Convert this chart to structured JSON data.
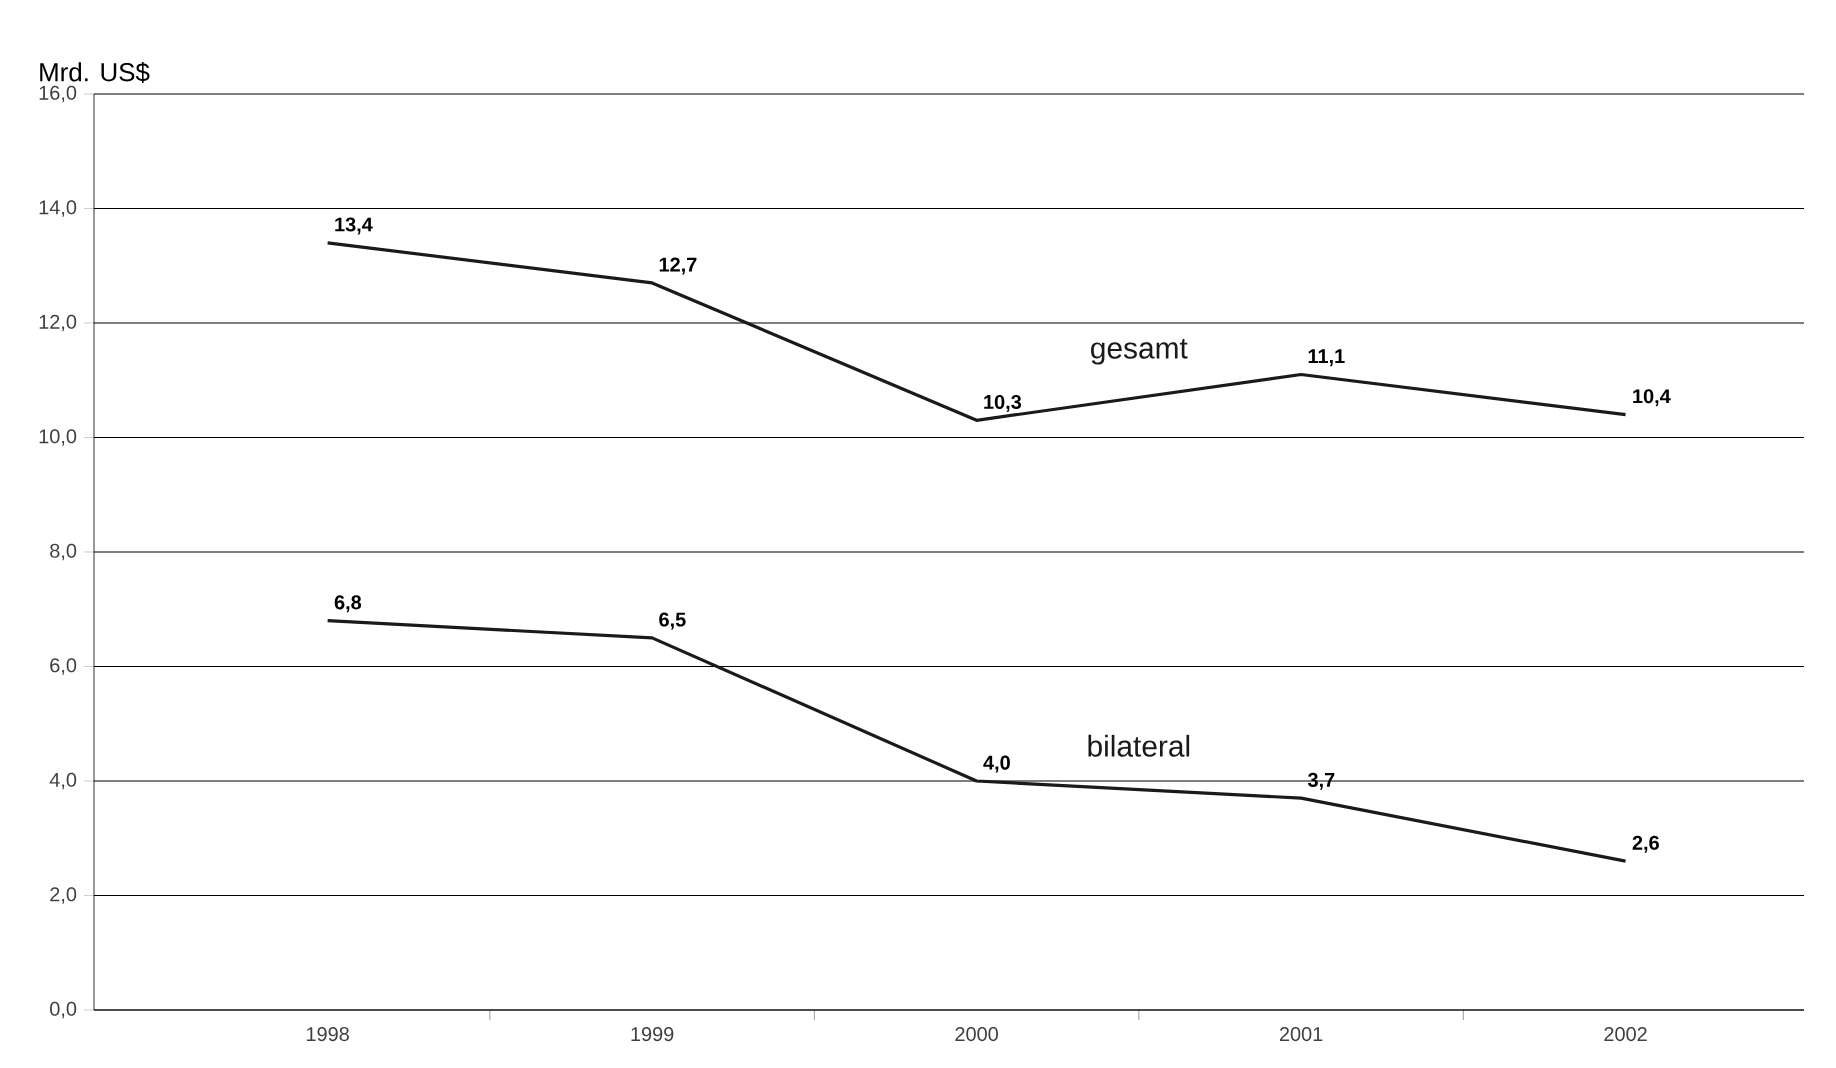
{
  "chart_data": {
    "type": "line",
    "ylabel": "Mrd. US$",
    "categories": [
      "1998",
      "1999",
      "2000",
      "2001",
      "2002"
    ],
    "series": [
      {
        "name": "gesamt",
        "color": "#1a1a1a",
        "values": [
          13.4,
          12.7,
          10.3,
          11.1,
          10.4
        ],
        "value_labels": [
          "13,4",
          "12,7",
          "10,3",
          "11,1",
          "10,4"
        ]
      },
      {
        "name": "bilateral",
        "color": "#1a1a1a",
        "values": [
          6.8,
          6.5,
          4.0,
          3.7,
          2.6
        ],
        "value_labels": [
          "6,8",
          "6,5",
          "4,0",
          "3,7",
          "2,6"
        ]
      }
    ],
    "ylim": [
      0,
      16
    ],
    "yticks": [
      {
        "value": 0,
        "label": "0,0"
      },
      {
        "value": 2,
        "label": "2,0"
      },
      {
        "value": 4,
        "label": "4,0"
      },
      {
        "value": 6,
        "label": "6,0"
      },
      {
        "value": 8,
        "label": "8,0"
      },
      {
        "value": 10,
        "label": "10,0"
      },
      {
        "value": 12,
        "label": "12,0"
      },
      {
        "value": 14,
        "label": "14,0"
      },
      {
        "value": 16,
        "label": "16,0"
      }
    ],
    "grid": "y",
    "marker": "none",
    "line_style": "solid"
  }
}
